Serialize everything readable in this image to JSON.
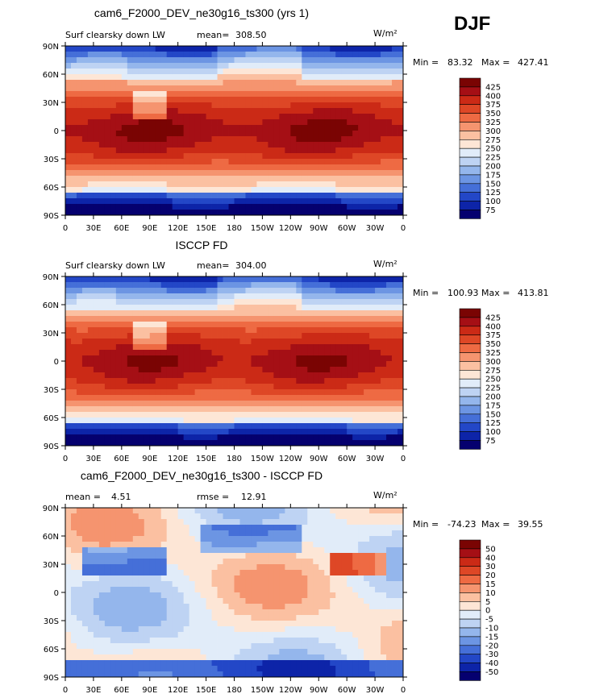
{
  "season": "DJF",
  "chart_data": [
    {
      "type": "heatmap",
      "title": "cam6_F2000_DEV_ne30g16_ts300 (yrs 1)",
      "left_label": "Surf clearsky down LW",
      "stat_label": "mean=",
      "stat_value": "308.50",
      "units": "W/m²",
      "min_label": "Min =",
      "min_value": "83.32",
      "max_label": "Max =",
      "max_value": "427.41",
      "colorbar_levels": [
        "425",
        "400",
        "375",
        "350",
        "325",
        "300",
        "275",
        "250",
        "225",
        "200",
        "175",
        "150",
        "125",
        "100",
        "75"
      ],
      "xticks": [
        "0",
        "30E",
        "60E",
        "90E",
        "120E",
        "150E",
        "180",
        "150W",
        "120W",
        "90W",
        "60W",
        "30W",
        "0"
      ],
      "yticks": [
        "90N",
        "60N",
        "30N",
        "0",
        "30S",
        "60S",
        "90S"
      ]
    },
    {
      "type": "heatmap",
      "title": "ISCCP FD",
      "left_label": "Surf clearsky down LW",
      "stat_label": "mean=",
      "stat_value": "304.00",
      "units": "W/m²",
      "min_label": "Min =",
      "min_value": "100.93",
      "max_label": "Max =",
      "max_value": "413.81",
      "colorbar_levels": [
        "425",
        "400",
        "375",
        "350",
        "325",
        "300",
        "275",
        "250",
        "225",
        "200",
        "175",
        "150",
        "125",
        "100",
        "75"
      ],
      "xticks": [
        "0",
        "30E",
        "60E",
        "90E",
        "120E",
        "150E",
        "180",
        "150W",
        "120W",
        "90W",
        "60W",
        "30W",
        "0"
      ],
      "yticks": [
        "90N",
        "60N",
        "30N",
        "0",
        "30S",
        "60S",
        "90S"
      ]
    },
    {
      "type": "heatmap",
      "title": "cam6_F2000_DEV_ne30g16_ts300 - ISCCP FD",
      "left_label": "mean =",
      "stat_label": "rmse =",
      "left_value": "4.51",
      "stat_value": "12.91",
      "units": "W/m²",
      "min_label": "Min =",
      "min_value": "-74.23",
      "max_label": "Max =",
      "max_value": "39.55",
      "colorbar_levels": [
        "50",
        "40",
        "30",
        "20",
        "15",
        "10",
        "5",
        "0",
        "-5",
        "-10",
        "-15",
        "-20",
        "-30",
        "-40",
        "-50"
      ],
      "xticks": [
        "0",
        "30E",
        "60E",
        "90E",
        "120E",
        "150E",
        "180",
        "150W",
        "120W",
        "90W",
        "60W",
        "30W",
        "0"
      ],
      "yticks": [
        "90N",
        "60N",
        "30N",
        "0",
        "30S",
        "60S",
        "90S"
      ]
    }
  ],
  "colors": {
    "scale16": [
      "#7a0403",
      "#a50f15",
      "#cb2a16",
      "#de4726",
      "#ee6a43",
      "#f5946f",
      "#fbc0a1",
      "#fde6d6",
      "#e1ecf9",
      "#bed3f3",
      "#94b6ec",
      "#6c95e3",
      "#456fd8",
      "#2347c7",
      "#0d24a8",
      "#05006f"
    ]
  }
}
